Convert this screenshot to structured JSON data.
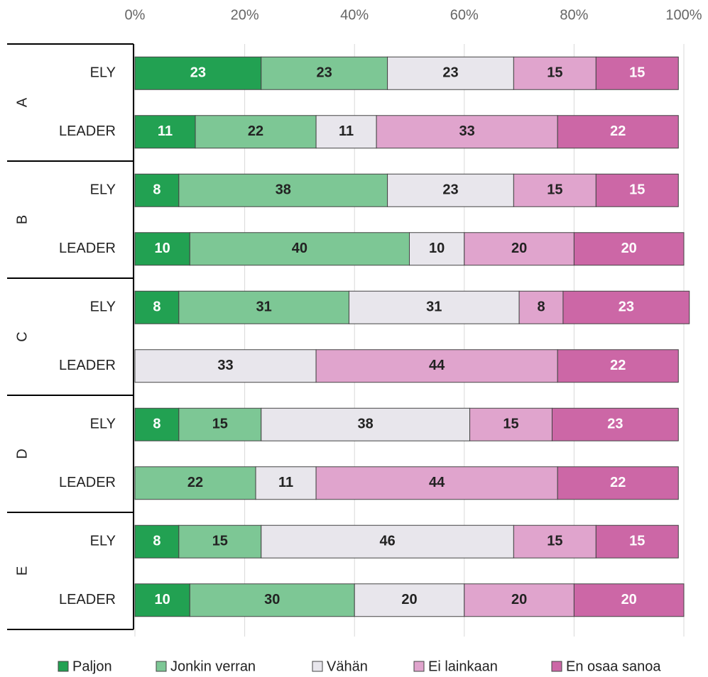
{
  "chart_data": {
    "type": "stacked_barh",
    "categories": [
      "ELY",
      "LEADER",
      "ELY",
      "LEADER",
      "ELY",
      "LEADER",
      "ELY",
      "LEADER",
      "ELY",
      "LEADER"
    ],
    "groups": [
      "A",
      "B",
      "C",
      "D",
      "E"
    ],
    "series": [
      {
        "name": "Paljon",
        "color": "#22a152",
        "text_color": "#ffffff",
        "values": [
          23,
          11,
          8,
          10,
          8,
          null,
          8,
          null,
          8,
          10
        ]
      },
      {
        "name": "Jonkin verran",
        "color": "#7dc795",
        "text_color": "#222222",
        "values": [
          23,
          22,
          38,
          40,
          31,
          null,
          15,
          22,
          15,
          30
        ]
      },
      {
        "name": "Vähän",
        "color": "#e8e6ec",
        "text_color": "#222222",
        "values": [
          23,
          11,
          23,
          10,
          31,
          33,
          38,
          11,
          46,
          20
        ]
      },
      {
        "name": "Ei lainkaan",
        "color": "#e0a4cd",
        "text_color": "#222222",
        "values": [
          15,
          33,
          15,
          20,
          8,
          44,
          15,
          44,
          15,
          20
        ]
      },
      {
        "name": "En osaa sanoa",
        "color": "#cc67a6",
        "text_color": "#ffffff",
        "values": [
          15,
          22,
          15,
          20,
          23,
          22,
          23,
          22,
          15,
          20
        ]
      }
    ],
    "xlim": [
      0,
      100
    ],
    "xticks": [
      {
        "value": 0,
        "label": "0%"
      },
      {
        "value": 20,
        "label": "20%"
      },
      {
        "value": 40,
        "label": "40%"
      },
      {
        "value": 60,
        "label": "60%"
      },
      {
        "value": 80,
        "label": "80%"
      },
      {
        "value": 100,
        "label": "100%"
      }
    ],
    "grid": true,
    "legend": "bottom"
  }
}
